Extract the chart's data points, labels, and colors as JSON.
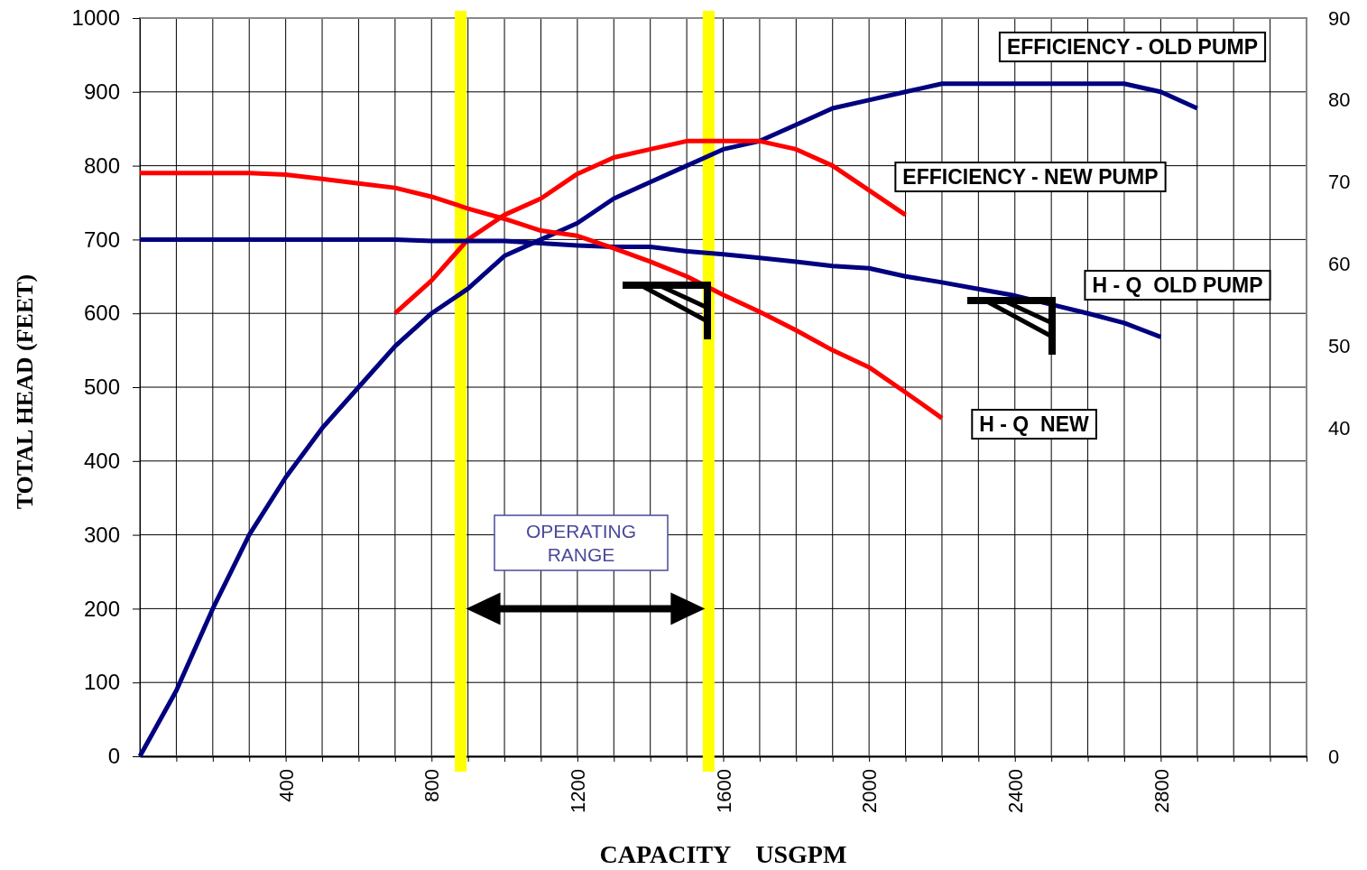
{
  "chart_data": {
    "type": "line",
    "xlabel": "CAPACITY    USGPM",
    "ylabel": "TOTAL HEAD (FEET)",
    "xlim": [
      0,
      3200
    ],
    "xticks": [
      {
        "value": 100,
        "label": null
      },
      {
        "value": 200,
        "label": null
      },
      {
        "value": 300,
        "label": null
      },
      400,
      {
        "value": 500,
        "label": null
      },
      {
        "value": 600,
        "label": null
      },
      {
        "value": 700,
        "label": null
      },
      800,
      {
        "value": 900,
        "label": null
      },
      {
        "value": 1000,
        "label": null
      },
      {
        "value": 1100,
        "label": null
      },
      1200,
      {
        "value": 1300,
        "label": null
      },
      {
        "value": 1400,
        "label": null
      },
      {
        "value": 1500,
        "label": null
      },
      1600,
      {
        "value": 1700,
        "label": null
      },
      {
        "value": 1800,
        "label": null
      },
      {
        "value": 1900,
        "label": null
      },
      2000,
      {
        "value": 2100,
        "label": null
      },
      {
        "value": 2200,
        "label": null
      },
      {
        "value": 2300,
        "label": null
      },
      2400,
      {
        "value": 2500,
        "label": null
      },
      {
        "value": 2600,
        "label": null
      },
      {
        "value": 2700,
        "label": null
      },
      2800,
      {
        "value": 2900,
        "label": null
      },
      {
        "value": 3000,
        "label": null
      },
      {
        "value": 3100,
        "label": null
      },
      {
        "value": 3200,
        "label": null
      }
    ],
    "ylim": [
      0,
      1000
    ],
    "yticks": [
      0,
      100,
      200,
      300,
      400,
      500,
      600,
      700,
      800,
      900,
      1000
    ],
    "y2lim": [
      0,
      90
    ],
    "y2ticks": [
      0,
      40,
      50,
      60,
      70,
      80,
      90
    ],
    "grid": true,
    "marker": "none",
    "line_style": "solid",
    "series": [
      {
        "name": "EFFICIENCY - OLD PUMP",
        "color": "#000080",
        "axis": "y2",
        "x": [
          0,
          100,
          200,
          300,
          400,
          500,
          600,
          700,
          800,
          900,
          1000,
          1100,
          1200,
          1300,
          1400,
          1500,
          1600,
          1700,
          1800,
          1900,
          2000,
          2100,
          2200,
          2300,
          2400,
          2500,
          2600,
          2700,
          2800,
          2900
        ],
        "values": [
          0,
          8,
          18,
          27,
          34,
          40,
          45,
          50,
          54,
          57,
          61,
          63,
          65,
          68,
          70,
          72,
          74,
          75,
          77,
          79,
          80,
          81,
          82,
          82,
          82,
          82,
          82,
          82,
          81,
          79
        ]
      },
      {
        "name": "EFFICIENCY - NEW PUMP",
        "color": "#ff0000",
        "axis": "y2",
        "x": [
          700,
          800,
          900,
          1000,
          1100,
          1200,
          1300,
          1400,
          1500,
          1600,
          1700,
          1800,
          1900,
          2000,
          2100
        ],
        "values": [
          54,
          58,
          63,
          66,
          68,
          71,
          73,
          74,
          75,
          75,
          75,
          74,
          72,
          69,
          66
        ]
      },
      {
        "name": "H - Q  OLD PUMP",
        "color": "#000080",
        "x": [
          0,
          100,
          200,
          300,
          400,
          500,
          600,
          700,
          800,
          900,
          1000,
          1100,
          1200,
          1300,
          1400,
          1500,
          1600,
          1700,
          1800,
          1900,
          2000,
          2100,
          2200,
          2300,
          2400,
          2500,
          2600,
          2700,
          2800
        ],
        "values": [
          700,
          700,
          700,
          700,
          700,
          700,
          700,
          700,
          698,
          698,
          698,
          695,
          692,
          690,
          690,
          684,
          680,
          675,
          670,
          664,
          661,
          650,
          642,
          633,
          624,
          612,
          600,
          587,
          568
        ]
      },
      {
        "name": "H - Q  NEW",
        "color": "#ff0000",
        "x": [
          0,
          100,
          200,
          300,
          400,
          500,
          600,
          700,
          800,
          900,
          1000,
          1100,
          1200,
          1300,
          1400,
          1500,
          1600,
          1700,
          1800,
          1900,
          2000,
          2100,
          2200
        ],
        "values": [
          790,
          790,
          790,
          790,
          788,
          782,
          776,
          770,
          758,
          742,
          728,
          712,
          705,
          688,
          670,
          650,
          625,
          602,
          577,
          550,
          527,
          493,
          458
        ]
      }
    ],
    "ref_lines": [
      {
        "axis": "x",
        "value": 880,
        "color": "#ffff00"
      },
      {
        "axis": "x",
        "value": 1560,
        "color": "#ffff00"
      }
    ],
    "annotations": [
      "OPERATING RANGE"
    ]
  }
}
